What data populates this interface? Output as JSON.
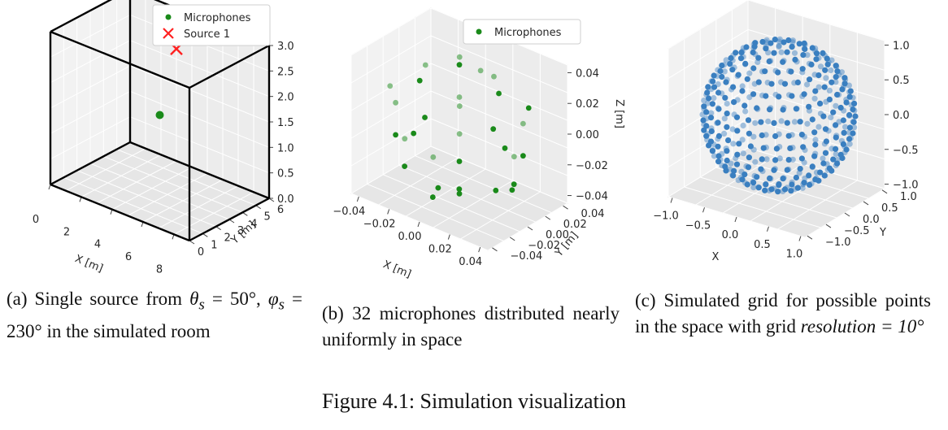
{
  "figure": {
    "title": "Figure 4.1: Simulation visualization"
  },
  "captions": {
    "a_prefix": "(a) Single source from ",
    "a_theta": "θ",
    "a_theta_sub": "s",
    "a_mid": " = 50°, ",
    "a_phi": "φ",
    "a_phi_sub": "s",
    "a_suffix": " = 230° in the simulated room",
    "b": "(b) 32 microphones distributed nearly uniformly in space",
    "c_text": "(c) Simulated grid for possible points in the space with grid ",
    "c_math": "resolution = 10°"
  },
  "colors": {
    "microphones": "#1a8a1a",
    "source": "#ff2020",
    "grid_points": "#3a7fc0",
    "room_box": "#000000",
    "pane": "#f2f2f2",
    "grid": "#dcdcdc"
  },
  "chart_data": [
    {
      "type": "scatter",
      "panel": "a",
      "legend": [
        "Microphones",
        "Source 1"
      ],
      "legend_placement": "top-center",
      "xlabel": "X [m]",
      "ylabel": "Y [m]",
      "zlabel": "",
      "x_ticks": [
        "0",
        "2",
        "4",
        "6",
        "8"
      ],
      "y_ticks": [
        "0",
        "1",
        "2",
        "3",
        "4",
        "5",
        "6"
      ],
      "z_ticks": [
        "0.0",
        "0.5",
        "1.0",
        "1.5",
        "2.0",
        "2.5",
        "3.0"
      ],
      "xlim": [
        0,
        9
      ],
      "ylim": [
        0,
        6
      ],
      "zlim": [
        0,
        3
      ],
      "room": {
        "x": [
          0,
          9
        ],
        "y": [
          0,
          6
        ],
        "z": [
          0,
          3
        ]
      },
      "series": [
        {
          "name": "Microphones",
          "marker": "o",
          "points": [
            [
              4.5,
              3.0,
              1.5
            ]
          ]
        },
        {
          "name": "Source 1",
          "marker": "x",
          "points": [
            [
              3.0,
              6.0,
              2.2
            ]
          ]
        }
      ],
      "grid": true
    },
    {
      "type": "scatter",
      "panel": "b",
      "legend": [
        "Microphones"
      ],
      "legend_placement": "top-center",
      "xlabel": "X [m]",
      "ylabel": "Y [m]",
      "zlabel": "Z [m]",
      "x_ticks": [
        "−0.04",
        "−0.02",
        "0.00",
        "0.02",
        "0.04"
      ],
      "y_ticks": [
        "−0.04",
        "−0.02",
        "0.00",
        "0.02",
        "0.04"
      ],
      "z_ticks": [
        "−0.04",
        "−0.02",
        "0.00",
        "0.02",
        "0.04"
      ],
      "xlim": [
        -0.045,
        0.045
      ],
      "ylim": [
        -0.045,
        0.045
      ],
      "zlim": [
        -0.045,
        0.045
      ],
      "points": [
        [
          0.0,
          0.0,
          0.042
        ],
        [
          0.0,
          0.0,
          -0.042
        ],
        [
          0.026,
          0.0,
          0.034
        ],
        [
          -0.013,
          0.0225,
          0.034
        ],
        [
          -0.013,
          -0.0225,
          0.034
        ],
        [
          0.036,
          0.0,
          -0.021
        ],
        [
          0.018,
          0.031,
          -0.021
        ],
        [
          -0.018,
          0.031,
          -0.021
        ],
        [
          -0.036,
          0.0,
          -0.021
        ],
        [
          -0.018,
          -0.031,
          -0.021
        ],
        [
          0.018,
          -0.031,
          -0.021
        ],
        [
          0.042,
          0.0,
          0.0
        ],
        [
          0.021,
          0.036,
          0.0
        ],
        [
          -0.021,
          0.036,
          0.0
        ],
        [
          -0.042,
          0.0,
          0.0
        ],
        [
          -0.021,
          -0.036,
          0.0
        ],
        [
          0.021,
          -0.036,
          0.0
        ],
        [
          0.034,
          0.02,
          0.021
        ],
        [
          0.0,
          0.039,
          0.021
        ],
        [
          -0.034,
          0.02,
          0.021
        ],
        [
          -0.034,
          -0.02,
          0.021
        ],
        [
          0.0,
          -0.039,
          0.021
        ],
        [
          0.034,
          -0.02,
          0.021
        ],
        [
          0.026,
          0.015,
          -0.034
        ],
        [
          -0.026,
          0.015,
          -0.034
        ],
        [
          0.0,
          -0.03,
          -0.034
        ],
        [
          0.03,
          0.0,
          0.0
        ],
        [
          -0.015,
          0.026,
          0.0
        ],
        [
          -0.015,
          -0.026,
          0.0
        ],
        [
          0.0,
          0.024,
          0.03
        ],
        [
          0.0,
          -0.024,
          -0.03
        ],
        [
          0.024,
          0.0,
          -0.03
        ]
      ],
      "grid": true
    },
    {
      "type": "scatter",
      "panel": "c",
      "xlabel": "X",
      "ylabel": "Y",
      "zlabel": "",
      "x_ticks": [
        "−1.0",
        "−0.5",
        "0.0",
        "0.5",
        "1.0"
      ],
      "y_ticks": [
        "−1.0",
        "−0.5",
        "0.0",
        "0.5",
        "1.0"
      ],
      "z_ticks": [
        "−1.0",
        "−0.5",
        "0.0",
        "0.5",
        "1.0"
      ],
      "xlim": [
        -1,
        1
      ],
      "ylim": [
        -1,
        1
      ],
      "zlim": [
        -1,
        1
      ],
      "resolution_deg": 10,
      "grid": true
    }
  ]
}
